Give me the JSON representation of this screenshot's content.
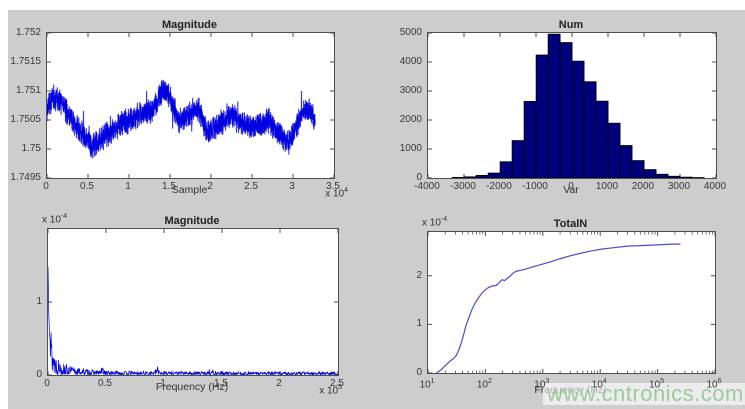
{
  "watermark": {
    "text": "www.cntronics.com",
    "color": "#9cca9c"
  },
  "figure": {
    "background": "#cdcdcd",
    "plot_background": "#ffffff",
    "axis_color": "#4f4f4f",
    "signal_blue": "#0000e0",
    "histogram_fill": "#00007e",
    "histogram_edge": "#000000",
    "curve_blue": "#4a4ad8"
  },
  "chart_data": [
    {
      "type": "line",
      "variant": "noisy",
      "title": "Magnitude",
      "xlabel": "Sample",
      "x_exponent": {
        "prefix": "x 10",
        "exp": "4"
      },
      "xlim": [
        0,
        35000
      ],
      "ylim": [
        1.7495,
        1.752
      ],
      "xticks": [
        {
          "v": 0,
          "label": "0"
        },
        {
          "v": 5000,
          "label": "0.5"
        },
        {
          "v": 10000,
          "label": "1"
        },
        {
          "v": 15000,
          "label": "1.5"
        },
        {
          "v": 20000,
          "label": "2"
        },
        {
          "v": 25000,
          "label": "2.5"
        },
        {
          "v": 30000,
          "label": "3"
        },
        {
          "v": 35000,
          "label": "3.5"
        }
      ],
      "yticks": [
        {
          "v": 1.7495,
          "label": "1.7495"
        },
        {
          "v": 1.75,
          "label": "1.75"
        },
        {
          "v": 1.7505,
          "label": "1.7505"
        },
        {
          "v": 1.751,
          "label": "1.751"
        },
        {
          "v": 1.7515,
          "label": "1.7515"
        },
        {
          "v": 1.752,
          "label": "1.752"
        }
      ],
      "x_end": 32700,
      "n_points": 3200,
      "noise_amp": 0.00022,
      "seed": 7,
      "color": "#0000e0",
      "trend": [
        [
          0,
          1.7507
        ],
        [
          800,
          1.7509
        ],
        [
          1800,
          1.7508
        ],
        [
          3000,
          1.7505
        ],
        [
          4200,
          1.7503
        ],
        [
          5500,
          1.75005
        ],
        [
          6800,
          1.7502
        ],
        [
          8500,
          1.7504
        ],
        [
          10000,
          1.7505
        ],
        [
          11500,
          1.7506
        ],
        [
          13000,
          1.7507
        ],
        [
          14200,
          1.75105
        ],
        [
          15000,
          1.7509
        ],
        [
          16000,
          1.7505
        ],
        [
          17500,
          1.7506
        ],
        [
          18500,
          1.7507
        ],
        [
          19500,
          1.7503
        ],
        [
          21000,
          1.7504
        ],
        [
          22500,
          1.7506
        ],
        [
          24000,
          1.7504
        ],
        [
          25500,
          1.7504
        ],
        [
          27000,
          1.7505
        ],
        [
          28000,
          1.7503
        ],
        [
          29500,
          1.7501
        ],
        [
          31000,
          1.7506
        ],
        [
          32000,
          1.7507
        ],
        [
          32700,
          1.7505
        ]
      ]
    },
    {
      "type": "bar",
      "title": "Num",
      "xlabel": "Var",
      "xlim": [
        -4000,
        4000
      ],
      "ylim": [
        0,
        5000
      ],
      "xticks": [
        {
          "v": -4000,
          "label": "-4000"
        },
        {
          "v": -3000,
          "label": "-3000"
        },
        {
          "v": -2000,
          "label": "-2000"
        },
        {
          "v": -1000,
          "label": "-1000"
        },
        {
          "v": 0,
          "label": "0"
        },
        {
          "v": 1000,
          "label": "1000"
        },
        {
          "v": 2000,
          "label": "2000"
        },
        {
          "v": 3000,
          "label": "3000"
        },
        {
          "v": 4000,
          "label": "4000"
        }
      ],
      "yticks": [
        {
          "v": 0,
          "label": "0"
        },
        {
          "v": 1000,
          "label": "1000"
        },
        {
          "v": 2000,
          "label": "2000"
        },
        {
          "v": 3000,
          "label": "3000"
        },
        {
          "v": 4000,
          "label": "4000"
        },
        {
          "v": 5000,
          "label": "5000"
        }
      ],
      "bin_width": 333,
      "fill": "#00007e",
      "edge": "#000000",
      "bars": [
        [
          -3163,
          20
        ],
        [
          -2830,
          40
        ],
        [
          -2497,
          90
        ],
        [
          -2163,
          170
        ],
        [
          -1830,
          560
        ],
        [
          -1497,
          1290
        ],
        [
          -1164,
          2640
        ],
        [
          -830,
          4240
        ],
        [
          -497,
          4960
        ],
        [
          -164,
          4670
        ],
        [
          169,
          4030
        ],
        [
          503,
          3320
        ],
        [
          836,
          2650
        ],
        [
          1169,
          1890
        ],
        [
          1502,
          1120
        ],
        [
          1836,
          600
        ],
        [
          2169,
          290
        ],
        [
          2502,
          130
        ],
        [
          2835,
          60
        ],
        [
          3169,
          30
        ],
        [
          3502,
          15
        ]
      ]
    },
    {
      "type": "line",
      "variant": "spectrum",
      "title": "Magnitude",
      "xlabel": "Frequency (Hz)",
      "x_exponent": {
        "prefix": "x 10",
        "exp": "5"
      },
      "y_exponent": {
        "prefix": "x 10",
        "exp": "-4"
      },
      "xlim": [
        0,
        250000
      ],
      "ylim": [
        0,
        2
      ],
      "xticks": [
        {
          "v": 0,
          "label": "0"
        },
        {
          "v": 50000,
          "label": "0.5"
        },
        {
          "v": 100000,
          "label": "1"
        },
        {
          "v": 150000,
          "label": "1.5"
        },
        {
          "v": 200000,
          "label": "2"
        },
        {
          "v": 250000,
          "label": "2.5"
        }
      ],
      "yticks": [
        {
          "v": 0,
          "label": "0"
        },
        {
          "v": 1,
          "label": "1"
        }
      ],
      "n_points": 850,
      "seed": 13,
      "color": "#0000e0",
      "envelope": [
        [
          0,
          1.95
        ],
        [
          600,
          1.8
        ],
        [
          1200,
          1.3
        ],
        [
          2000,
          0.85
        ],
        [
          3000,
          0.6
        ],
        [
          4500,
          0.42
        ],
        [
          6500,
          0.3
        ],
        [
          9000,
          0.23
        ],
        [
          13000,
          0.17
        ],
        [
          18000,
          0.13
        ],
        [
          25000,
          0.1
        ],
        [
          35000,
          0.08
        ],
        [
          44000,
          0.06
        ],
        [
          47000,
          0.12
        ],
        [
          50000,
          0.06
        ],
        [
          65000,
          0.055
        ],
        [
          80000,
          0.05
        ],
        [
          92000,
          0.06
        ],
        [
          95000,
          0.13
        ],
        [
          98000,
          0.06
        ],
        [
          115000,
          0.05
        ],
        [
          135000,
          0.05
        ],
        [
          140000,
          0.09
        ],
        [
          144000,
          0.05
        ],
        [
          170000,
          0.045
        ],
        [
          200000,
          0.045
        ],
        [
          250000,
          0.045
        ]
      ]
    },
    {
      "type": "line",
      "variant": "log",
      "title": "TotalN",
      "xlabel": "Frequency (Hz)",
      "y_exponent": {
        "prefix": "x 10",
        "exp": "-4"
      },
      "xscale": "log",
      "xlim": [
        10,
        1000000
      ],
      "ylim": [
        0,
        2.9
      ],
      "xticks": [
        {
          "v": 10,
          "base": "10",
          "exp": "1"
        },
        {
          "v": 100,
          "base": "10",
          "exp": "2"
        },
        {
          "v": 1000,
          "base": "10",
          "exp": "3"
        },
        {
          "v": 10000,
          "base": "10",
          "exp": "4"
        },
        {
          "v": 100000,
          "base": "10",
          "exp": "5"
        },
        {
          "v": 1000000,
          "base": "10",
          "exp": "6"
        }
      ],
      "yticks": [
        {
          "v": 0,
          "label": "0"
        },
        {
          "v": 1,
          "label": "1"
        },
        {
          "v": 2,
          "label": "2"
        }
      ],
      "color": "#4a4ad8",
      "points": [
        [
          14,
          0
        ],
        [
          17,
          0.07
        ],
        [
          20,
          0.15
        ],
        [
          24,
          0.24
        ],
        [
          28,
          0.3
        ],
        [
          31,
          0.36
        ],
        [
          34,
          0.46
        ],
        [
          38,
          0.62
        ],
        [
          42,
          0.8
        ],
        [
          46,
          0.98
        ],
        [
          52,
          1.15
        ],
        [
          58,
          1.3
        ],
        [
          65,
          1.42
        ],
        [
          74,
          1.53
        ],
        [
          84,
          1.62
        ],
        [
          95,
          1.69
        ],
        [
          110,
          1.75
        ],
        [
          130,
          1.79
        ],
        [
          155,
          1.8
        ],
        [
          175,
          1.86
        ],
        [
          195,
          1.92
        ],
        [
          215,
          1.9
        ],
        [
          240,
          1.95
        ],
        [
          270,
          1.99
        ],
        [
          300,
          2.05
        ],
        [
          340,
          2.09
        ],
        [
          400,
          2.11
        ],
        [
          480,
          2.13
        ],
        [
          580,
          2.16
        ],
        [
          750,
          2.2
        ],
        [
          1000,
          2.24
        ],
        [
          1400,
          2.29
        ],
        [
          2000,
          2.35
        ],
        [
          3000,
          2.41
        ],
        [
          4500,
          2.46
        ],
        [
          7000,
          2.51
        ],
        [
          11000,
          2.55
        ],
        [
          18000,
          2.58
        ],
        [
          30000,
          2.61
        ],
        [
          50000,
          2.62
        ],
        [
          80000,
          2.63
        ],
        [
          120000,
          2.64
        ],
        [
          180000,
          2.65
        ],
        [
          250000,
          2.65
        ]
      ]
    }
  ]
}
